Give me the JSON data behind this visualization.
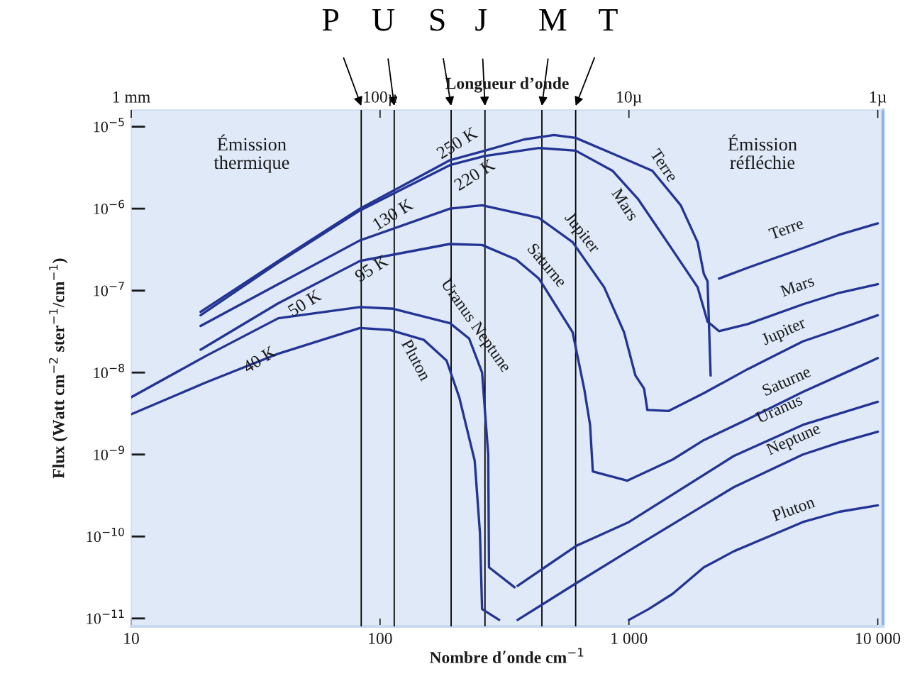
{
  "chart_data": {
    "type": "line",
    "log": "xy",
    "grid": false,
    "legend": false,
    "xlabel": "Nombre d’onde cm$^{−1}$",
    "ylabel": "Flux (Watt cm$^{−2}$ ster$^{−1}$/cm$^{−1}$)",
    "x2label": "Longueur d’onde",
    "xlim": [
      10,
      10500
    ],
    "ylim": [
      8e-12,
      1.6e-05
    ],
    "xticks": [
      10,
      100,
      {
        "value": 1000,
        "label": "1 000"
      },
      {
        "value": 10000,
        "label": "10 000"
      }
    ],
    "yticks": [
      {
        "value": 1e-11,
        "label": "10$^{−11}$"
      },
      {
        "value": 1e-10,
        "label": "10$^{−10}$"
      },
      {
        "value": 1e-09,
        "label": "10$^{−9}$"
      },
      {
        "value": 1e-08,
        "label": "10$^{−8}$"
      },
      {
        "value": 1e-07,
        "label": "10$^{−7}$"
      },
      {
        "value": 1e-06,
        "label": "10$^{−6}$"
      },
      {
        "value": 1e-05,
        "label": "10$^{−5}$"
      }
    ],
    "series": [
      {
        "name": "Terre",
        "color": "#233494",
        "x": [
          19,
          39,
          83,
          191,
          264,
          380,
          500,
          611,
          859,
          1242,
          1615,
          1888,
          2000,
          2070,
          2130
        ],
        "values": [
          5.5e-08,
          2.3e-07,
          1e-06,
          3.9e-06,
          5.1e-06,
          7e-06,
          7.9e-06,
          7.3e-06,
          4.7e-06,
          2.9e-06,
          1.1e-06,
          3.9e-07,
          1.6e-07,
          1.3e-07,
          9.2e-09
        ]
      },
      {
        "name": "Mars",
        "color": "#233494",
        "x": [
          19,
          39,
          83,
          191,
          264,
          435,
          611,
          859,
          1090,
          1452,
          1888,
          2070
        ],
        "values": [
          5e-08,
          2.2e-07,
          9.5e-07,
          3.4e-06,
          4.4e-06,
          5.5e-06,
          5.1e-06,
          2.9e-06,
          1.3e-06,
          3.6e-07,
          1.1e-07,
          4.2e-08
        ]
      },
      {
        "name": "Jupiter",
        "color": "#233494",
        "x": [
          19,
          39,
          83,
          191,
          257,
          435,
          594,
          795,
          956,
          1062,
          1150,
          1186,
          1445
        ],
        "values": [
          3.7e-08,
          1.2e-07,
          4.1e-07,
          1e-06,
          1.1e-06,
          7.7e-07,
          3.9e-07,
          1.1e-07,
          3.1e-08,
          9.2e-09,
          6.4e-09,
          3.5e-09,
          3.4e-09
        ]
      },
      {
        "name": "Saturne",
        "color": "#233494",
        "x": [
          19,
          39,
          83,
          190,
          257,
          352,
          435,
          594,
          662,
          698,
          716,
          986
        ],
        "values": [
          1.9e-08,
          7e-08,
          2.3e-07,
          3.7e-07,
          3.6e-07,
          2.4e-07,
          1.4e-07,
          3.1e-08,
          6.2e-09,
          2.3e-09,
          6.2e-10,
          4.8e-10
        ]
      },
      {
        "name": "Uranus Neptune",
        "color": "#233494",
        "x": [
          10,
          20,
          39,
          83,
          113,
          191,
          228,
          257,
          272,
          274,
          347
        ],
        "values": [
          5e-09,
          1.6e-08,
          4.6e-08,
          6.3e-08,
          6e-08,
          4e-08,
          2.6e-08,
          1e-08,
          1e-09,
          4.2e-11,
          2.4e-11
        ]
      },
      {
        "name": "Pluton",
        "color": "#233494",
        "x": [
          10,
          20,
          39,
          83,
          110,
          150,
          185,
          208,
          240,
          252,
          257,
          301
        ],
        "values": [
          3.1e-09,
          7.6e-09,
          1.7e-08,
          3.5e-08,
          3.3e-08,
          2.5e-08,
          1.4e-08,
          5e-09,
          8.4e-10,
          1.1e-10,
          1.3e-11,
          9.6e-12
        ]
      },
      {
        "name": "Terre",
        "color": "#233494",
        "x": [
          2300,
          3000,
          5000,
          7000,
          10000
        ],
        "values": [
          1.4e-07,
          1.9e-07,
          3.3e-07,
          4.8e-07,
          6.6e-07
        ]
      },
      {
        "name": "Mars",
        "color": "#233494",
        "x": [
          2070,
          2300,
          3000,
          5000,
          7000,
          10000
        ],
        "values": [
          4.2e-08,
          3.2e-08,
          3.9e-08,
          6.8e-08,
          9.4e-08,
          1.2e-07
        ]
      },
      {
        "name": "Jupiter",
        "color": "#233494",
        "x": [
          1445,
          2000,
          3000,
          5000,
          7000,
          10000
        ],
        "values": [
          3.4e-09,
          5.6e-09,
          1.1e-08,
          2.4e-08,
          3.4e-08,
          5e-08
        ]
      },
      {
        "name": "Saturne",
        "color": "#233494",
        "x": [
          986,
          1500,
          2000,
          3000,
          5000,
          7000,
          10000
        ],
        "values": [
          4.8e-10,
          8.7e-10,
          1.5e-09,
          2.7e-09,
          5.8e-09,
          9.2e-09,
          1.5e-08
        ]
      },
      {
        "name": "Uranus",
        "color": "#233494",
        "x": [
          357,
          615,
          1000,
          2640,
          5000,
          10000
        ],
        "values": [
          2.5e-11,
          7.7e-11,
          1.5e-10,
          9.6e-10,
          2.3e-09,
          4.4e-09
        ]
      },
      {
        "name": "Neptune",
        "color": "#233494",
        "x": [
          357,
          615,
          1000,
          2000,
          2640,
          5000,
          7000,
          10000
        ],
        "values": [
          9.6e-12,
          2.7e-11,
          6.7e-11,
          2.4e-10,
          4e-10,
          1e-09,
          1.4e-09,
          1.9e-09
        ]
      },
      {
        "name": "Pluton",
        "color": "#233494",
        "x": [
          1000,
          1200,
          1500,
          2000,
          2640,
          5000,
          7000,
          10000
        ],
        "values": [
          9.6e-12,
          1.3e-11,
          2e-11,
          4.2e-11,
          6.6e-11,
          1.5e-10,
          2e-10,
          2.4e-10
        ]
      }
    ],
    "ref_lines": [
      {
        "axis": "x",
        "value": 84,
        "label": "P",
        "color": "#000000"
      },
      {
        "axis": "x",
        "value": 114,
        "label": "U",
        "color": "#000000"
      },
      {
        "axis": "x",
        "value": 193,
        "label": "S",
        "color": "#000000"
      },
      {
        "axis": "x",
        "value": 264,
        "label": "J",
        "color": "#000000"
      },
      {
        "axis": "x",
        "value": 447,
        "label": "M",
        "color": "#000000"
      },
      {
        "axis": "x",
        "value": 611,
        "label": "T",
        "color": "#000000"
      }
    ],
    "annotations": [
      "Émission\nthermique",
      "Émission\nréfléchie",
      "250 K",
      "220 K",
      "130 K",
      "95 K",
      "50 K",
      "40 K",
      "1 mm",
      "100µ",
      "10µ",
      "1µ"
    ]
  }
}
